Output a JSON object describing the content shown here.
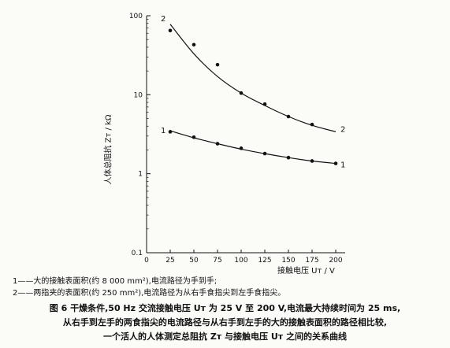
{
  "chart_data": {
    "type": "line",
    "xlabel": "接触电压 Uᴛ / V",
    "ylabel": "人体总阻抗 Zᴛ / kΩ",
    "y_scale": "log",
    "xlim": [
      0,
      210
    ],
    "ylim": [
      0.1,
      100
    ],
    "x_ticks": [
      "0",
      "25",
      "50",
      "75",
      "100",
      "125",
      "150",
      "175",
      "200"
    ],
    "y_ticks": [
      "0.1",
      "1",
      "10",
      "100"
    ],
    "series": [
      {
        "name": "1",
        "points_x": [
          25,
          50,
          75,
          100,
          125,
          150,
          175,
          200
        ],
        "points_y": [
          3.4,
          2.9,
          2.4,
          2.1,
          1.8,
          1.6,
          1.45,
          1.35
        ],
        "curve_x": [
          25,
          50,
          75,
          100,
          125,
          150,
          175,
          200
        ],
        "curve_y": [
          3.5,
          2.85,
          2.4,
          2.05,
          1.8,
          1.6,
          1.45,
          1.35
        ]
      },
      {
        "name": "2",
        "points_x": [
          25,
          50,
          75,
          100,
          125,
          150,
          175
        ],
        "points_y": [
          65,
          43,
          24,
          10.5,
          7.6,
          5.3,
          4.2
        ],
        "curve_x": [
          25,
          50,
          75,
          100,
          125,
          150,
          175,
          200
        ],
        "curve_y": [
          78,
          33,
          17,
          10.5,
          7.3,
          5.3,
          4.1,
          3.4
        ]
      }
    ],
    "grid": false,
    "legend": "none"
  },
  "notes": [
    "1——大的接触表面积(约 8 000 mm²),电流路径为手到手;",
    "2——两指夹的表面积(约 250 mm²),电流路径为从右手食指尖到左手食指尖。"
  ],
  "caption": [
    "图 6   干燥条件,50 Hz 交流接触电压 Uᴛ 为 25 V 至 200 V,电流最大持续时间为 25 ms,",
    "从右手到左手的两食指尖的电流路径与从右手到左手的大的接触表面积的路径相比较,",
    "一个活人的人体测定总阻抗 Zᴛ 与接触电压 Uᴛ 之间的关系曲线"
  ],
  "colors": {
    "ink": "#111111",
    "background": "#fbfbf8"
  }
}
